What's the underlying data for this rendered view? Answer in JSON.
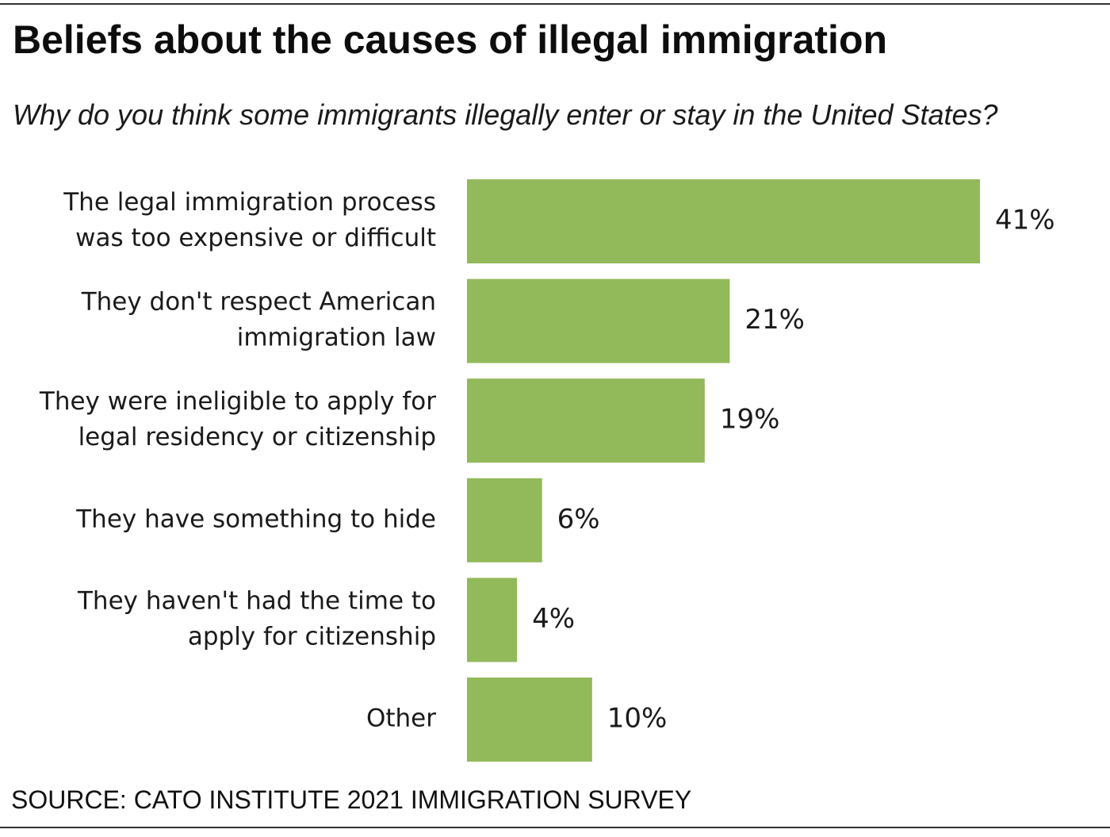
{
  "header": {
    "title": "Beliefs about the causes of illegal immigration",
    "subtitle": "Why do you think some immigrants illegally enter or stay in the United States?"
  },
  "footer": {
    "source": "SOURCE: CATO INSTITUTE 2021 IMMIGRATION SURVEY"
  },
  "colors": {
    "bar": "#92b95a",
    "text": "#1a1a1a"
  },
  "chart_data": {
    "type": "bar",
    "orientation": "horizontal",
    "title": "Beliefs about the causes of illegal immigration",
    "subtitle": "Why do you think some immigrants illegally enter or stay in the United States?",
    "categories": [
      [
        "The legal immigration process",
        "was too expensive or difficult"
      ],
      [
        "They don't respect American",
        "immigration law"
      ],
      [
        "They were ineligible to apply for",
        "legal residency or citizenship"
      ],
      [
        "They have something to hide"
      ],
      [
        "They haven't had the time to",
        "apply for citizenship"
      ],
      [
        "Other"
      ]
    ],
    "values": [
      41,
      21,
      19,
      6,
      4,
      10
    ],
    "value_labels": [
      "41%",
      "21%",
      "19%",
      "6%",
      "4%",
      "10%"
    ],
    "unit": "%",
    "xlim": [
      0,
      41
    ],
    "grid": false,
    "legend": "none"
  }
}
